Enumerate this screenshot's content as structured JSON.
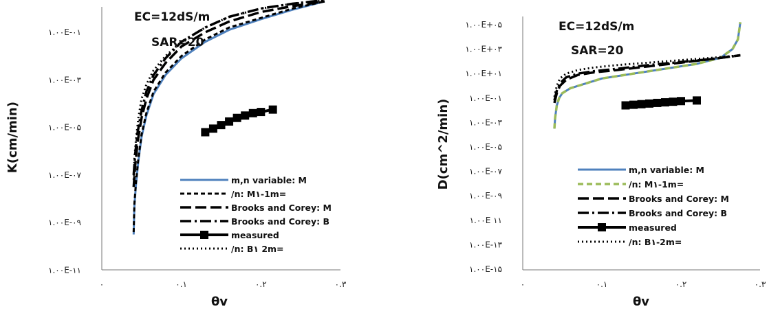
{
  "chart_data": [
    {
      "type": "line",
      "ylabel": "K(cm/min)",
      "xlabel": "θv",
      "x_ticks": [
        "۰",
        "۰.۱",
        "۰.۲",
        "۰.۳"
      ],
      "xlim": [
        0,
        0.3
      ],
      "y_scale": "log",
      "y_ticks": [
        "۱.۰۰E-۱۱",
        "۱.۰۰E-۰۹",
        "۱.۰۰E-۰۷",
        "۱.۰۰E-۰۵",
        "۱.۰۰E-۰۳",
        "۱.۰۰E-۰۱"
      ],
      "ylim_exp": [
        -11,
        0.2
      ],
      "annotations": [
        "EC=12dS/m",
        "SAR=20"
      ],
      "legend": [
        "m,n variable: M",
        "/n: M۱-1m=",
        "Brooks and Corey: M",
        "Brooks and Corey: B",
        "measured",
        "/n: B۱ 2m="
      ],
      "series": [
        {
          "name": "m,n variable: M",
          "x": [
            0.04,
            0.041,
            0.043,
            0.046,
            0.05,
            0.056,
            0.065,
            0.08,
            0.1,
            0.13,
            0.16,
            0.2,
            0.24,
            0.28
          ],
          "y_exp": [
            -9.5,
            -8.3,
            -7.4,
            -6.4,
            -5.4,
            -4.5,
            -3.6,
            -2.8,
            -2.1,
            -1.4,
            -0.9,
            -0.45,
            -0.05,
            0.3
          ]
        },
        {
          "name": "/n: M۱-1m=",
          "x": [
            0.04,
            0.041,
            0.043,
            0.046,
            0.05,
            0.056,
            0.065,
            0.08,
            0.1,
            0.13,
            0.16,
            0.2,
            0.24,
            0.28
          ],
          "y_exp": [
            -9.4,
            -8.2,
            -7.3,
            -6.3,
            -5.3,
            -4.4,
            -3.5,
            -2.7,
            -2.0,
            -1.3,
            -0.8,
            -0.4,
            0.0,
            0.3
          ]
        },
        {
          "name": "Brooks and Corey: M",
          "x": [
            0.04,
            0.042,
            0.045,
            0.05,
            0.056,
            0.065,
            0.08,
            0.1,
            0.13,
            0.16,
            0.2,
            0.24,
            0.28
          ],
          "y_exp": [
            -7.5,
            -6.6,
            -5.6,
            -4.6,
            -3.8,
            -3.0,
            -2.3,
            -1.6,
            -1.0,
            -0.55,
            -0.15,
            0.1,
            0.3
          ]
        },
        {
          "name": "Brooks and Corey: B",
          "x": [
            0.04,
            0.042,
            0.045,
            0.05,
            0.056,
            0.065,
            0.08,
            0.1,
            0.13,
            0.16,
            0.2,
            0.24,
            0.28
          ],
          "y_exp": [
            -7.0,
            -6.1,
            -5.2,
            -4.3,
            -3.5,
            -2.8,
            -2.1,
            -1.4,
            -0.8,
            -0.35,
            0.0,
            0.2,
            0.35
          ]
        },
        {
          "name": "measured",
          "x": [
            0.13,
            0.14,
            0.15,
            0.16,
            0.17,
            0.18,
            0.19,
            0.2,
            0.215
          ],
          "y_exp": [
            -5.2,
            -5.05,
            -4.9,
            -4.75,
            -4.6,
            -4.5,
            -4.4,
            -4.35,
            -4.25
          ]
        },
        {
          "name": "/n: B۱ 2m=",
          "x": [
            0.04,
            0.041,
            0.043,
            0.046,
            0.05,
            0.056,
            0.065,
            0.08,
            0.1,
            0.13,
            0.16,
            0.2,
            0.24,
            0.28
          ],
          "y_exp": [
            -7.2,
            -6.3,
            -5.5,
            -4.6,
            -3.8,
            -3.2,
            -2.6,
            -2.0,
            -1.4,
            -0.8,
            -0.35,
            0.0,
            0.2,
            0.35
          ]
        }
      ]
    },
    {
      "type": "line",
      "ylabel": "D(cm^2/min)",
      "xlabel": "θv",
      "x_ticks": [
        "۰",
        "۰.۱",
        "۰.۲",
        "۰.۳"
      ],
      "xlim": [
        0,
        0.3
      ],
      "y_scale": "log",
      "y_ticks": [
        "۱.۰۰E-۱۵",
        "۱.۰۰E-۱۳",
        "۱.۰۰E ۱۱",
        "۱.۰۰E-۰۹",
        "۱.۰۰E-۰۷",
        "۱.۰۰E-۰۵",
        "۱.۰۰E-۰۳",
        "۱.۰۰E-۰۱",
        "۱.۰۰E+۰۱",
        "۱.۰۰E+۰۳",
        "۱.۰۰E+۰۵"
      ],
      "ylim_exp": [
        -15,
        5
      ],
      "annotations": [
        "EC=12dS/m",
        "SAR=20"
      ],
      "legend": [
        "m,n variable: M",
        "/n: M۱-1m=",
        "Brooks and Corey: M",
        "Brooks and Corey: B",
        "measured",
        "/n: B۱-2m="
      ],
      "series": [
        {
          "name": "m,n variable: M",
          "x": [
            0.04,
            0.041,
            0.043,
            0.046,
            0.05,
            0.06,
            0.08,
            0.1,
            0.14,
            0.18,
            0.22,
            0.25,
            0.265,
            0.272,
            0.275
          ],
          "y_exp": [
            -3.5,
            -2.6,
            -1.6,
            -1.0,
            -0.6,
            -0.2,
            0.2,
            0.6,
            1.0,
            1.4,
            1.8,
            2.3,
            3.0,
            3.8,
            5.2
          ]
        },
        {
          "name": "/n: M۱-1m=",
          "x": [
            0.04,
            0.041,
            0.043,
            0.046,
            0.05,
            0.06,
            0.08,
            0.1,
            0.14,
            0.18,
            0.22,
            0.25,
            0.265,
            0.272,
            0.275
          ],
          "y_exp": [
            -3.5,
            -2.6,
            -1.6,
            -1.0,
            -0.6,
            -0.2,
            0.2,
            0.6,
            1.0,
            1.4,
            1.8,
            2.3,
            3.0,
            3.8,
            5.2
          ]
        },
        {
          "name": "Brooks and Corey: M",
          "x": [
            0.04,
            0.043,
            0.047,
            0.055,
            0.07,
            0.09,
            0.12,
            0.16,
            0.2,
            0.24,
            0.275
          ],
          "y_exp": [
            -1.4,
            -0.6,
            0.0,
            0.5,
            0.9,
            1.1,
            1.3,
            1.6,
            1.9,
            2.2,
            2.5
          ]
        },
        {
          "name": "Brooks and Corey: B",
          "x": [
            0.04,
            0.043,
            0.047,
            0.055,
            0.07,
            0.09,
            0.12,
            0.16,
            0.2,
            0.24,
            0.275
          ],
          "y_exp": [
            -1.2,
            -0.4,
            0.2,
            0.7,
            1.0,
            1.2,
            1.4,
            1.7,
            1.95,
            2.2,
            2.5
          ]
        },
        {
          "name": "measured",
          "x": [
            0.13,
            0.14,
            0.15,
            0.16,
            0.17,
            0.18,
            0.19,
            0.2,
            0.22
          ],
          "y_exp": [
            -1.6,
            -1.55,
            -1.5,
            -1.45,
            -1.4,
            -1.35,
            -1.3,
            -1.25,
            -1.2
          ]
        },
        {
          "name": "/n: B۱-2m=",
          "x": [
            0.04,
            0.043,
            0.047,
            0.055,
            0.07,
            0.09,
            0.12,
            0.16,
            0.2,
            0.24,
            0.275
          ],
          "y_exp": [
            -0.9,
            0.0,
            0.6,
            1.0,
            1.3,
            1.5,
            1.7,
            1.9,
            2.1,
            2.3,
            2.5
          ]
        }
      ]
    }
  ],
  "styles": {
    "m,n variable: M": {
      "color": "#4f81bd",
      "dash": "",
      "width": 3
    },
    "/n: M۱-1m=": {
      "color": "#000000",
      "dash": "6,4",
      "width": 3
    },
    "/n: M۱-1m=_green": {
      "color": "#9bbb59",
      "dash": "8,5",
      "width": 3.5
    },
    "Brooks and Corey: M": {
      "color": "#000000",
      "dash": "16,6",
      "width": 3.5
    },
    "Brooks and Corey: B": {
      "color": "#000000",
      "dash": "16,5,3,5",
      "width": 3.5
    },
    "measured": {
      "color": "#000000",
      "dash": "",
      "width": 4
    },
    "/n: B۱ 2m=": {
      "color": "#000000",
      "dash": "2,4",
      "width": 3
    },
    "/n: B۱-2m=": {
      "color": "#000000",
      "dash": "2,4",
      "width": 3
    }
  }
}
